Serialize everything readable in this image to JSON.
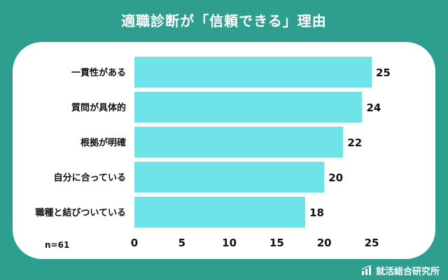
{
  "header": {
    "title": "適職診断が「信頼できる」理由"
  },
  "footnote": {
    "sample": "n=61"
  },
  "brand": {
    "name": "就活総合研究所"
  },
  "colors": {
    "background": "#2e9e8f",
    "bar": "#6ee3e8",
    "card": "#ffffff"
  },
  "chart_data": {
    "type": "bar",
    "orientation": "horizontal",
    "title": "適職診断が「信頼できる」理由",
    "categories": [
      "一貫性がある",
      "質問が具体的",
      "根拠が明確",
      "自分に合っている",
      "職種と結びついている"
    ],
    "values": [
      25,
      24,
      22,
      20,
      18
    ],
    "xlim": [
      0,
      25
    ],
    "xticks": [
      0,
      5,
      10,
      15,
      20,
      25
    ],
    "grid": false,
    "legend": "none"
  }
}
